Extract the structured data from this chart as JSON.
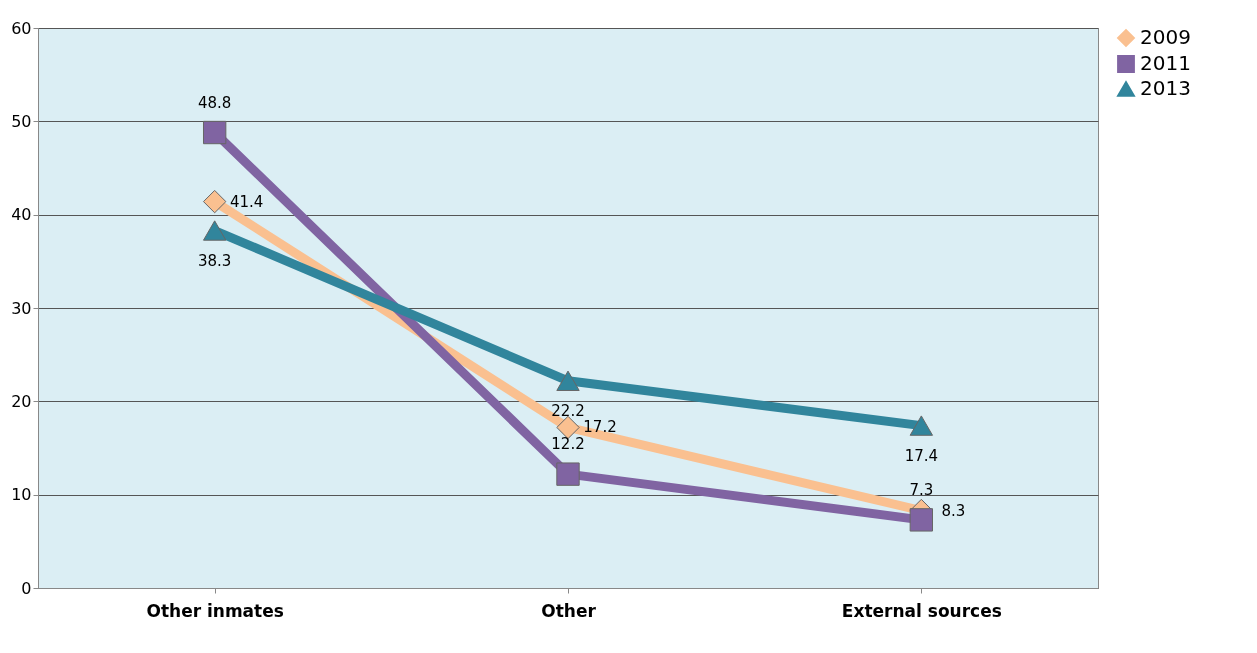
{
  "chart_data": {
    "type": "line",
    "categories": [
      "Other inmates",
      "Other",
      "External sources"
    ],
    "series": [
      {
        "name": "2009",
        "color": "#fac090",
        "marker": "diamond",
        "values": [
          41.4,
          17.2,
          8.3
        ]
      },
      {
        "name": "2011",
        "color": "#8064a2",
        "marker": "square",
        "values": [
          48.8,
          12.2,
          7.3
        ]
      },
      {
        "name": "2013",
        "color": "#31859c",
        "marker": "triangle",
        "values": [
          38.3,
          22.2,
          17.4
        ]
      }
    ],
    "ylim": [
      0,
      60
    ],
    "yticks": [
      0,
      10,
      20,
      30,
      40,
      50,
      60
    ],
    "grid": "y",
    "legend": "right",
    "data_labels": true
  }
}
